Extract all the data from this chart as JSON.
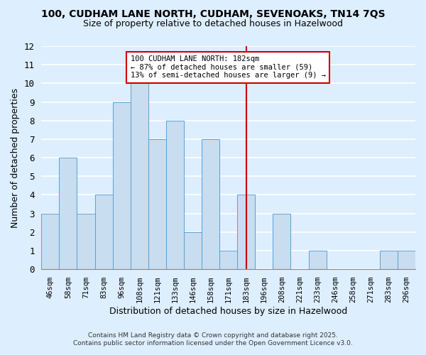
{
  "title_line1": "100, CUDHAM LANE NORTH, CUDHAM, SEVENOAKS, TN14 7QS",
  "title_line2": "Size of property relative to detached houses in Hazelwood",
  "xlabel": "Distribution of detached houses by size in Hazelwood",
  "ylabel": "Number of detached properties",
  "categories": [
    "46sqm",
    "58sqm",
    "71sqm",
    "83sqm",
    "96sqm",
    "108sqm",
    "121sqm",
    "133sqm",
    "146sqm",
    "158sqm",
    "171sqm",
    "183sqm",
    "196sqm",
    "208sqm",
    "221sqm",
    "233sqm",
    "246sqm",
    "258sqm",
    "271sqm",
    "283sqm",
    "296sqm"
  ],
  "values": [
    3,
    6,
    3,
    4,
    9,
    10,
    7,
    8,
    2,
    7,
    1,
    4,
    0,
    3,
    0,
    1,
    0,
    0,
    0,
    1,
    1
  ],
  "bar_color": "#c8ddf0",
  "bar_edge_color": "#5a9fd4",
  "vline_x_index": 11,
  "vline_color": "#cc0000",
  "annotation_title": "100 CUDHAM LANE NORTH: 182sqm",
  "annotation_line1": "← 87% of detached houses are smaller (59)",
  "annotation_line2": "13% of semi-detached houses are larger (9) →",
  "annotation_box_color": "#ffffff",
  "annotation_box_edge": "#cc0000",
  "ylim": [
    0,
    12
  ],
  "yticks": [
    0,
    1,
    2,
    3,
    4,
    5,
    6,
    7,
    8,
    9,
    10,
    11,
    12
  ],
  "background_color": "#ddeeff",
  "grid_color": "#ffffff",
  "footnote_line1": "Contains HM Land Registry data © Crown copyright and database right 2025.",
  "footnote_line2": "Contains public sector information licensed under the Open Government Licence v3.0."
}
